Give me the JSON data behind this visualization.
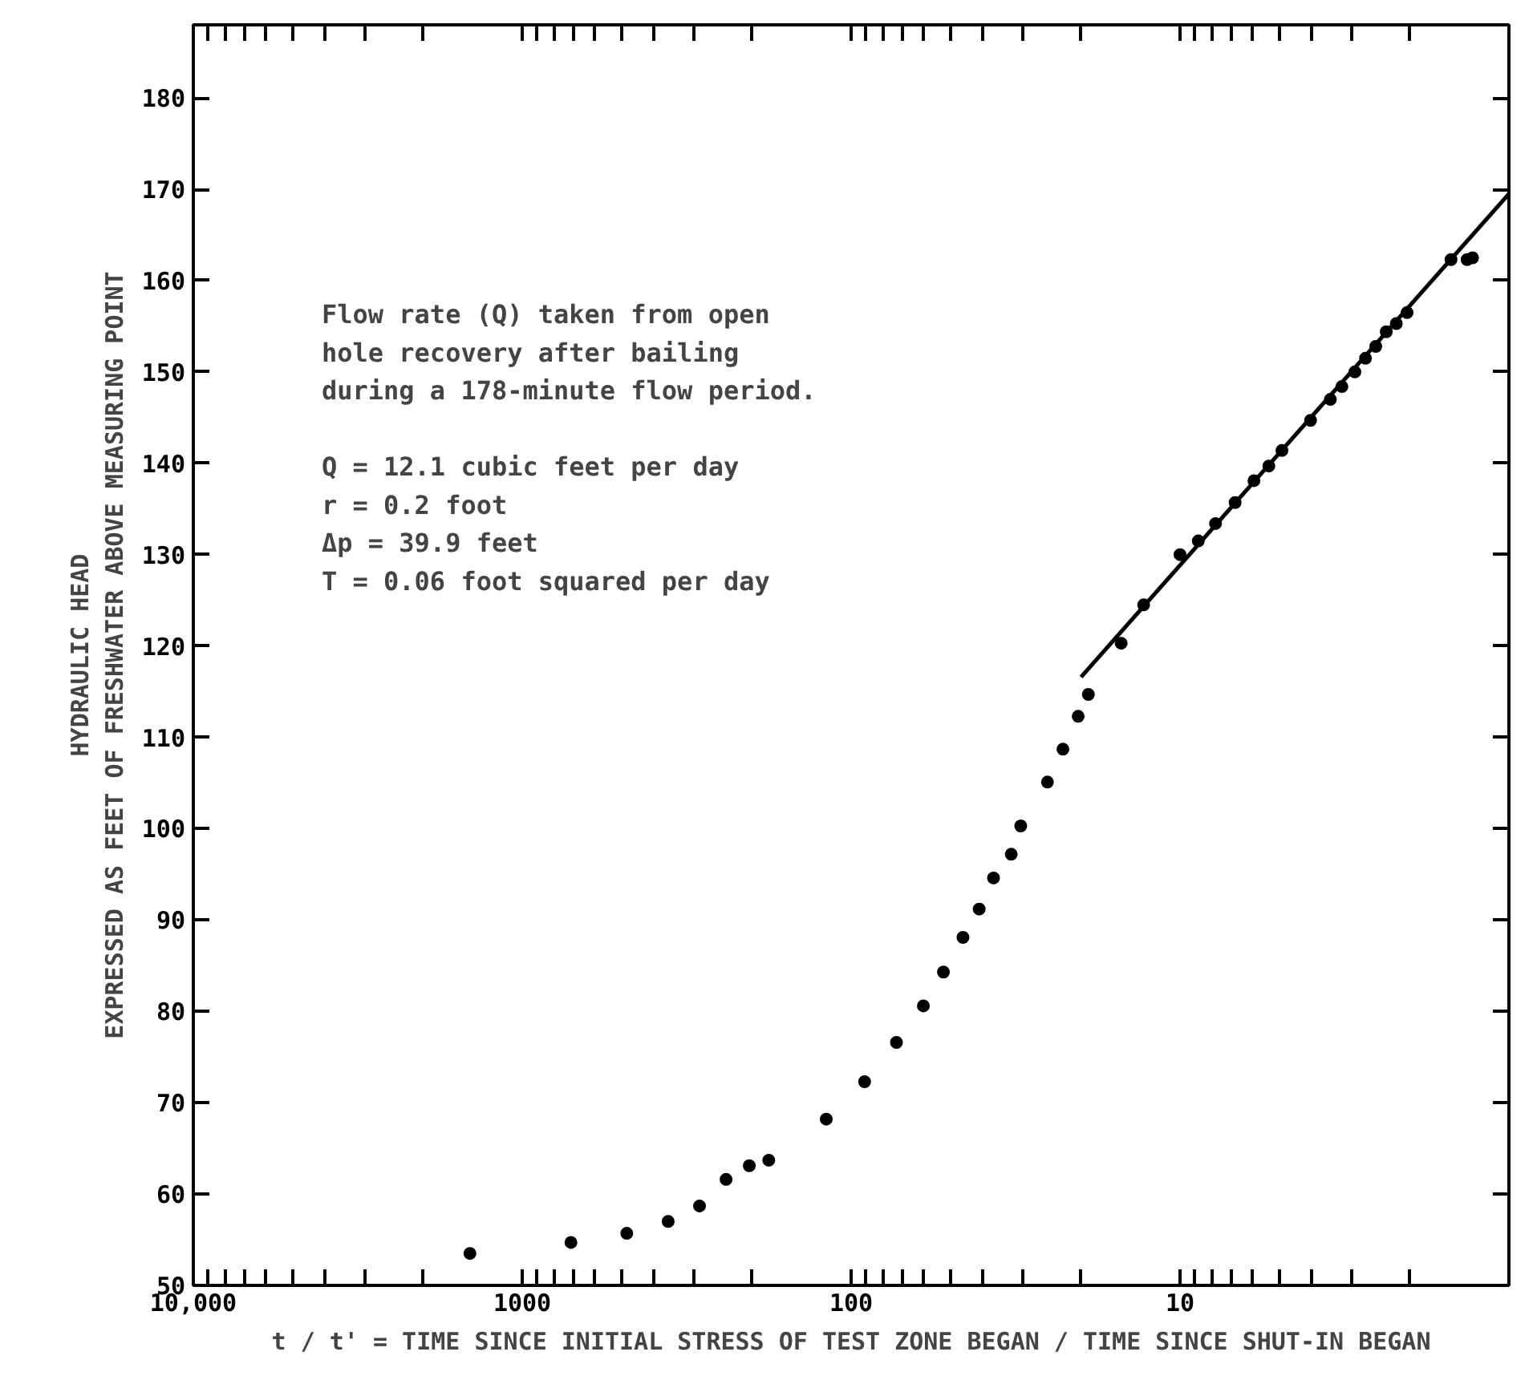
{
  "chart_data": {
    "type": "scatter",
    "log": "x",
    "grid": false,
    "marker": "circle",
    "xlabel": "t / t' = TIME SINCE INITIAL STRESS OF TEST ZONE BEGAN / TIME SINCE SHUT-IN BEGAN",
    "ylabel": "HYDRAULIC HEAD\nEXPRESSED AS FEET OF FRESHWATER ABOVE MEASURING POINT",
    "annotations": [
      "Flow rate (Q) taken from open\n  hole recovery after bailing\n  during a 178-minute flow period.\n\n  Q = 12.1 cubic feet per day\n  r = 0.2 foot\nΔp = 39.9 feet\n  T = 0.06 foot squared per day"
    ],
    "xlim": [
      10000,
      1
    ],
    "ylim": [
      50,
      188
    ],
    "xticks": [
      {
        "value": 10000,
        "label": "10,000"
      },
      {
        "value": 9000,
        "label": null
      },
      {
        "value": 8000,
        "label": null
      },
      {
        "value": 7000,
        "label": null
      },
      {
        "value": 6000,
        "label": null
      },
      {
        "value": 5000,
        "label": null
      },
      {
        "value": 4000,
        "label": null
      },
      {
        "value": 3000,
        "label": null
      },
      {
        "value": 2000,
        "label": null
      },
      1000,
      {
        "value": 900,
        "label": null
      },
      {
        "value": 800,
        "label": null
      },
      {
        "value": 700,
        "label": null
      },
      {
        "value": 600,
        "label": null
      },
      {
        "value": 500,
        "label": null
      },
      {
        "value": 400,
        "label": null
      },
      {
        "value": 300,
        "label": null
      },
      {
        "value": 200,
        "label": null
      },
      100,
      {
        "value": 90,
        "label": null
      },
      {
        "value": 80,
        "label": null
      },
      {
        "value": 70,
        "label": null
      },
      {
        "value": 60,
        "label": null
      },
      {
        "value": 50,
        "label": null
      },
      {
        "value": 40,
        "label": null
      },
      {
        "value": 30,
        "label": null
      },
      {
        "value": 20,
        "label": null
      },
      10,
      {
        "value": 9,
        "label": null
      },
      {
        "value": 8,
        "label": null
      },
      {
        "value": 7,
        "label": null
      },
      {
        "value": 6,
        "label": null
      },
      {
        "value": 5,
        "label": null
      },
      {
        "value": 4,
        "label": null
      },
      {
        "value": 3,
        "label": null
      },
      {
        "value": 2,
        "label": null
      }
    ],
    "yticks": [
      50,
      60,
      70,
      80,
      90,
      100,
      110,
      120,
      130,
      140,
      150,
      160,
      170,
      180
    ],
    "series": [
      {
        "color": "#000000",
        "x": [
          1442,
          711,
          481,
          360,
          289,
          240,
          204,
          178,
          119,
          91,
          72.8,
          60.3,
          52.4,
          45.7,
          40.8,
          36.9,
          32.6,
          30.5,
          25.3,
          22.7,
          20.4,
          19.0,
          15.1,
          12.9,
          10.0,
          8.8,
          7.8,
          6.8,
          5.96,
          5.37,
          4.9,
          4.01,
          3.49,
          3.22,
          2.94,
          2.73,
          2.54,
          2.36,
          2.2,
          2.04,
          1.5,
          1.34,
          1.29
        ],
        "values": [
          53.5,
          54.7,
          55.7,
          57.0,
          58.7,
          61.6,
          63.1,
          63.7,
          68.2,
          72.3,
          76.6,
          80.6,
          84.3,
          88.1,
          91.2,
          94.6,
          97.2,
          100.3,
          105.1,
          108.7,
          112.3,
          114.7,
          120.3,
          124.5,
          130.0,
          131.5,
          133.4,
          135.7,
          138.1,
          139.7,
          141.4,
          144.7,
          147.0,
          148.4,
          150.0,
          151.5,
          152.8,
          154.4,
          155.3,
          156.5,
          162.3,
          162.3,
          162.5
        ]
      },
      {
        "type": "line",
        "color": "#000000",
        "marker": "none",
        "line_style": "solid",
        "x": [
          20,
          1
        ],
        "values": [
          116.6,
          169.5
        ]
      }
    ]
  }
}
